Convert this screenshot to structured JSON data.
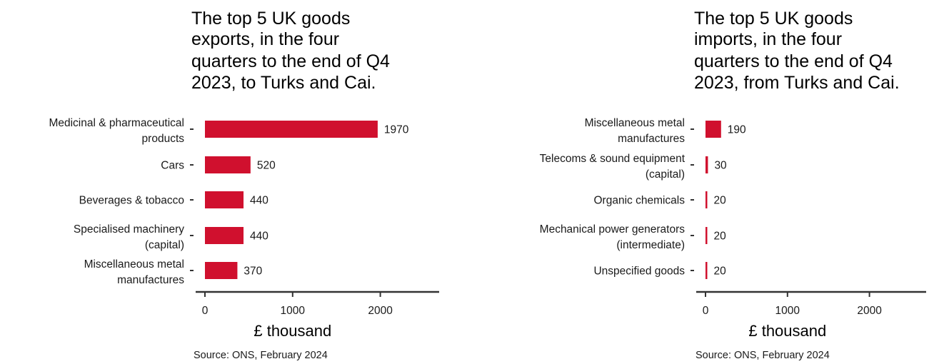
{
  "colors": {
    "bar": "#d0102e",
    "axis": "#333333",
    "text": "#1a1a1a"
  },
  "chart_data": [
    {
      "type": "bar",
      "orientation": "horizontal",
      "title_lines": [
        "The top 5 UK goods",
        "exports, in the four",
        "quarters to the end of Q4",
        "2023, to Turks and Cai."
      ],
      "categories": [
        [
          "Medicinal & pharmaceutical",
          "products"
        ],
        [
          "Cars"
        ],
        [
          "Beverages & tobacco"
        ],
        [
          "Specialised machinery",
          "(capital)"
        ],
        [
          "Miscellaneous metal",
          "manufactures"
        ]
      ],
      "values": [
        1970,
        520,
        440,
        440,
        370
      ],
      "xlabel": "£ thousand",
      "xlim": [
        0,
        2650
      ],
      "xticks": [
        0,
        1000,
        2000
      ],
      "source": "Source: ONS, February 2024"
    },
    {
      "type": "bar",
      "orientation": "horizontal",
      "title_lines": [
        "The top 5 UK goods",
        "imports, in the four",
        "quarters to the end of Q4",
        "2023, from Turks and Cai."
      ],
      "categories": [
        [
          "Miscellaneous metal",
          "manufactures"
        ],
        [
          "Telecoms & sound equipment",
          "(capital)"
        ],
        [
          "Organic chemicals"
        ],
        [
          "Mechanical power generators",
          "(intermediate)"
        ],
        [
          "Unspecified goods"
        ]
      ],
      "values": [
        190,
        30,
        20,
        20,
        20
      ],
      "xlabel": "£ thousand",
      "xlim": [
        0,
        2650
      ],
      "xticks": [
        0,
        1000,
        2000
      ],
      "source": "Source: ONS, February 2024"
    }
  ]
}
